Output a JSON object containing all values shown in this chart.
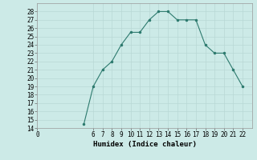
{
  "x": [
    5,
    6,
    7,
    8,
    9,
    10,
    11,
    12,
    13,
    14,
    15,
    16,
    17,
    18,
    19,
    20,
    21,
    22
  ],
  "y": [
    14.5,
    19,
    21,
    22,
    24,
    25.5,
    25.5,
    27,
    28,
    28,
    27,
    27,
    27,
    24,
    23,
    23,
    21,
    19
  ],
  "xlabel": "Humidex (Indice chaleur)",
  "ylim": [
    14,
    29
  ],
  "xlim": [
    0,
    23
  ],
  "yticks": [
    14,
    15,
    16,
    17,
    18,
    19,
    20,
    21,
    22,
    23,
    24,
    25,
    26,
    27,
    28
  ],
  "xticks": [
    0,
    6,
    7,
    8,
    9,
    10,
    11,
    12,
    13,
    14,
    15,
    16,
    17,
    18,
    19,
    20,
    21,
    22
  ],
  "line_color": "#2d7a6e",
  "marker_color": "#2d7a6e",
  "bg_color": "#cceae7",
  "grid_color": "#b8d8d5",
  "tick_fontsize": 5.5,
  "xlabel_fontsize": 6.5
}
